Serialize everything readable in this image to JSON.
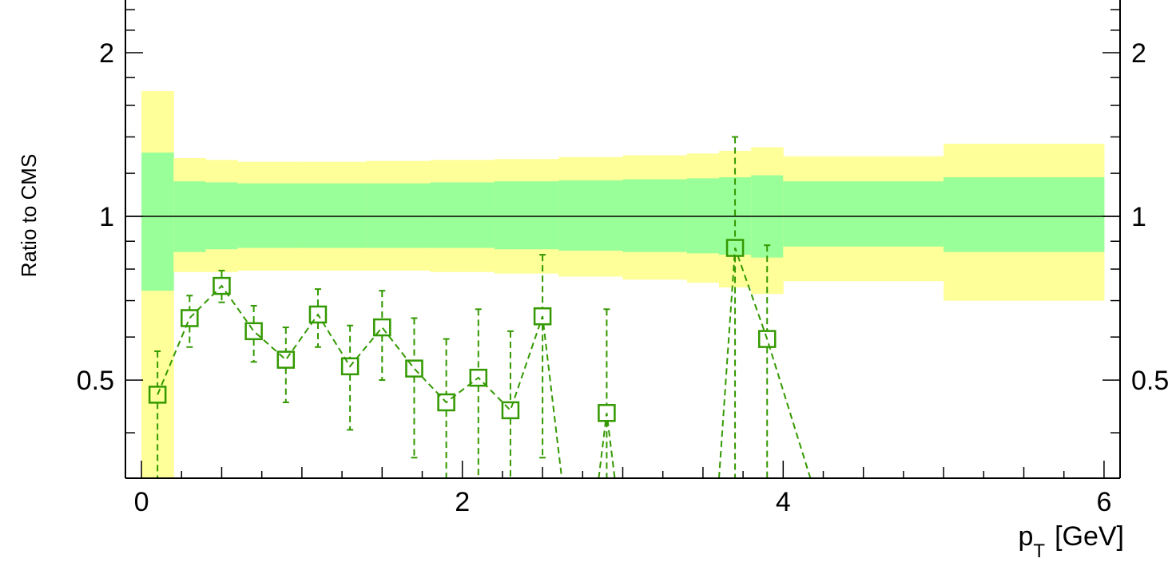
{
  "chart_data": {
    "type": "scatter",
    "title": "",
    "xlabel": {
      "main": "p",
      "sub": "T",
      "unit": "[GeV]"
    },
    "ylabel": "Ratio to CMS",
    "xlim": [
      -0.1,
      6.1
    ],
    "ylim": [
      0.33,
      2.5
    ],
    "y_scale": "log",
    "x_ticks": [
      "0",
      "2",
      "4",
      "6"
    ],
    "y_ticks": [
      "0.5",
      "1",
      "2"
    ],
    "y_ticks_right": [
      "0.5",
      "1",
      "2"
    ],
    "reference_line": 1,
    "colors": {
      "outer_band": "#ffff99",
      "inner_band": "#99ff99",
      "series": "#339900",
      "axes": "#000000"
    },
    "bands": [
      {
        "x0": 0.0,
        "x1": 0.2,
        "outer": [
          0.3,
          1.7
        ],
        "inner": [
          0.73,
          1.31
        ]
      },
      {
        "x0": 0.2,
        "x1": 0.4,
        "outer": [
          0.79,
          1.28
        ],
        "inner": [
          0.86,
          1.16
        ]
      },
      {
        "x0": 0.4,
        "x1": 0.6,
        "outer": [
          0.79,
          1.27
        ],
        "inner": [
          0.87,
          1.155
        ]
      },
      {
        "x0": 0.6,
        "x1": 1.0,
        "outer": [
          0.795,
          1.26
        ],
        "inner": [
          0.875,
          1.15
        ]
      },
      {
        "x0": 1.0,
        "x1": 1.4,
        "outer": [
          0.795,
          1.26
        ],
        "inner": [
          0.875,
          1.15
        ]
      },
      {
        "x0": 1.4,
        "x1": 1.8,
        "outer": [
          0.795,
          1.265
        ],
        "inner": [
          0.875,
          1.15
        ]
      },
      {
        "x0": 1.8,
        "x1": 2.2,
        "outer": [
          0.79,
          1.27
        ],
        "inner": [
          0.875,
          1.155
        ]
      },
      {
        "x0": 2.2,
        "x1": 2.6,
        "outer": [
          0.785,
          1.275
        ],
        "inner": [
          0.87,
          1.16
        ]
      },
      {
        "x0": 2.6,
        "x1": 3.0,
        "outer": [
          0.775,
          1.285
        ],
        "inner": [
          0.865,
          1.165
        ]
      },
      {
        "x0": 3.0,
        "x1": 3.4,
        "outer": [
          0.765,
          1.295
        ],
        "inner": [
          0.86,
          1.17
        ]
      },
      {
        "x0": 3.4,
        "x1": 3.6,
        "outer": [
          0.755,
          1.305
        ],
        "inner": [
          0.855,
          1.175
        ]
      },
      {
        "x0": 3.6,
        "x1": 3.8,
        "outer": [
          0.74,
          1.32
        ],
        "inner": [
          0.85,
          1.18
        ]
      },
      {
        "x0": 3.8,
        "x1": 4.0,
        "outer": [
          0.72,
          1.34
        ],
        "inner": [
          0.84,
          1.19
        ]
      },
      {
        "x0": 4.0,
        "x1": 5.0,
        "outer": [
          0.76,
          1.29
        ],
        "inner": [
          0.88,
          1.16
        ]
      },
      {
        "x0": 5.0,
        "x1": 6.0,
        "outer": [
          0.7,
          1.36
        ],
        "inner": [
          0.86,
          1.18
        ]
      }
    ],
    "series": [
      {
        "marker": "open-square",
        "line": "dashed",
        "points": [
          {
            "x": 0.1,
            "y": 0.47,
            "err_lo": 0.33,
            "err_hi": 0.565
          },
          {
            "x": 0.3,
            "y": 0.65,
            "err_lo": 0.575,
            "err_hi": 0.715
          },
          {
            "x": 0.5,
            "y": 0.745,
            "err_lo": 0.695,
            "err_hi": 0.795
          },
          {
            "x": 0.7,
            "y": 0.615,
            "err_lo": 0.54,
            "err_hi": 0.685
          },
          {
            "x": 0.9,
            "y": 0.545,
            "err_lo": 0.455,
            "err_hi": 0.625
          },
          {
            "x": 1.1,
            "y": 0.66,
            "err_lo": 0.575,
            "err_hi": 0.735
          },
          {
            "x": 1.3,
            "y": 0.53,
            "err_lo": 0.405,
            "err_hi": 0.63
          },
          {
            "x": 1.5,
            "y": 0.625,
            "err_lo": 0.5,
            "err_hi": 0.73
          },
          {
            "x": 1.7,
            "y": 0.525,
            "err_lo": 0.36,
            "err_hi": 0.65
          },
          {
            "x": 1.9,
            "y": 0.455,
            "err_lo": 0.33,
            "err_hi": 0.595
          },
          {
            "x": 2.1,
            "y": 0.505,
            "err_lo": 0.33,
            "err_hi": 0.675
          },
          {
            "x": 2.3,
            "y": 0.44,
            "err_lo": 0.33,
            "err_hi": 0.615
          },
          {
            "x": 2.5,
            "y": 0.655,
            "err_lo": 0.36,
            "err_hi": 0.85
          },
          {
            "x": 2.9,
            "y": 0.435,
            "err_lo": 0.33,
            "err_hi": 0.675
          },
          {
            "x": 3.7,
            "y": 0.875,
            "err_lo": 0.33,
            "err_hi": 1.4
          },
          {
            "x": 3.9,
            "y": 0.595,
            "err_lo": 0.33,
            "err_hi": 0.885
          }
        ],
        "line_path": [
          {
            "x": 0.1,
            "y": 0.47
          },
          {
            "x": 0.3,
            "y": 0.65
          },
          {
            "x": 0.5,
            "y": 0.745
          },
          {
            "x": 0.7,
            "y": 0.615
          },
          {
            "x": 0.9,
            "y": 0.545
          },
          {
            "x": 1.1,
            "y": 0.66
          },
          {
            "x": 1.3,
            "y": 0.53
          },
          {
            "x": 1.5,
            "y": 0.625
          },
          {
            "x": 1.7,
            "y": 0.525
          },
          {
            "x": 1.9,
            "y": 0.455
          },
          {
            "x": 2.1,
            "y": 0.505
          },
          {
            "x": 2.3,
            "y": 0.44
          },
          {
            "x": 2.5,
            "y": 0.655
          },
          {
            "x": 2.62,
            "y": 0.33
          }
        ],
        "line_path_2": [
          {
            "x": 2.85,
            "y": 0.33
          },
          {
            "x": 2.9,
            "y": 0.435
          },
          {
            "x": 2.95,
            "y": 0.33
          }
        ],
        "line_path_3": [
          {
            "x": 3.6,
            "y": 0.33
          },
          {
            "x": 3.7,
            "y": 0.875
          },
          {
            "x": 3.9,
            "y": 0.595
          },
          {
            "x": 4.17,
            "y": 0.33
          }
        ]
      }
    ]
  }
}
